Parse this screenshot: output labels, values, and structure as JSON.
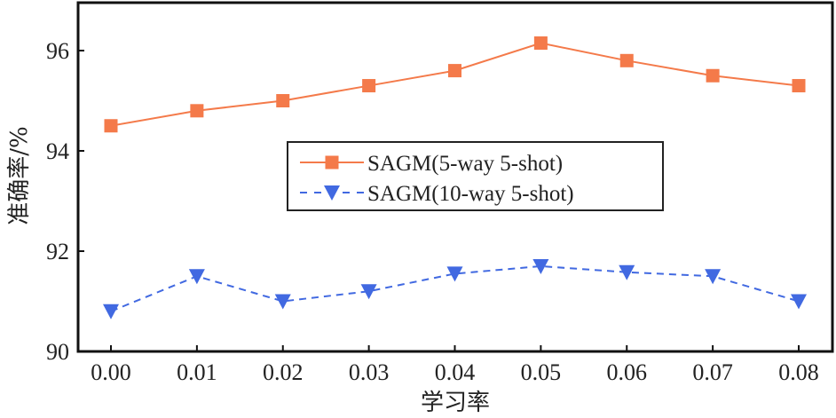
{
  "chart_data": {
    "type": "line",
    "title": "",
    "xlabel": "学习率",
    "ylabel": "准确率/%",
    "x": [
      0.0,
      0.01,
      0.02,
      0.03,
      0.04,
      0.05,
      0.06,
      0.07,
      0.08
    ],
    "x_tick_labels": [
      "0.00",
      "0.01",
      "0.02",
      "0.03",
      "0.04",
      "0.05",
      "0.06",
      "0.07",
      "0.08"
    ],
    "y_ticks": [
      90,
      92,
      94,
      96
    ],
    "y_tick_labels": [
      "90",
      "92",
      "94",
      "96"
    ],
    "ylim": [
      90,
      97
    ],
    "grid": false,
    "legend_position": "center",
    "series": [
      {
        "name": "SAGM(5-way 5-shot)",
        "values": [
          94.5,
          94.8,
          95.0,
          95.3,
          95.6,
          96.15,
          95.8,
          95.5,
          95.3
        ],
        "color": "#f47a4a",
        "marker": "square",
        "line_style": "solid"
      },
      {
        "name": "SAGM(10-way 5-shot)",
        "values": [
          90.8,
          91.5,
          91.0,
          91.2,
          91.55,
          91.7,
          91.58,
          91.5,
          91.0
        ],
        "color": "#4169e1",
        "marker": "triangle-down",
        "line_style": "dashed"
      }
    ]
  }
}
